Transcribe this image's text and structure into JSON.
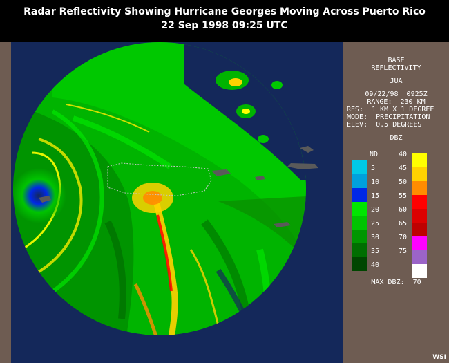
{
  "header": {
    "title": "Radar Reflectivity Showing Hurricane Georges Moving Across Puerto Rico",
    "subtitle": "22 Sep 1998 09:25 UTC"
  },
  "panel": {
    "product": "BASE",
    "product2": "REFLECTIVITY",
    "station": "JUA",
    "datetime": "09/22/98  0925Z",
    "range": "RANGE:  230 KM",
    "res": "RES:  1 KM X 1 DEGREE",
    "mode": "MODE:  PRECIPITATION",
    "elev": "ELEV:  0.5 DEGREES",
    "units": "DBZ",
    "max_dbz": "MAX DBZ:  70"
  },
  "legend": {
    "left": [
      {
        "label": "ND",
        "color": ""
      },
      {
        "label": "5",
        "color": "#00c8e6"
      },
      {
        "label": "10",
        "color": "#00a0dc"
      },
      {
        "label": "15",
        "color": "#0028e6"
      },
      {
        "label": "20",
        "color": "#00e600"
      },
      {
        "label": "25",
        "color": "#00c400"
      },
      {
        "label": "30",
        "color": "#009600"
      },
      {
        "label": "35",
        "color": "#006e00"
      },
      {
        "label": "40",
        "color": "#004600"
      }
    ],
    "right": [
      {
        "label": "40",
        "color": "#ffff00"
      },
      {
        "label": "45",
        "color": "#ffd200"
      },
      {
        "label": "50",
        "color": "#ff8c00"
      },
      {
        "label": "55",
        "color": "#ff0000"
      },
      {
        "label": "60",
        "color": "#dc0000"
      },
      {
        "label": "65",
        "color": "#be0000"
      },
      {
        "label": "70",
        "color": "#ff00ff"
      },
      {
        "label": "75",
        "color": "#9b64c8"
      },
      {
        "label": "",
        "color": "#ffffff"
      }
    ]
  },
  "logo": "WSI",
  "colors": {
    "background": "#6e5c52",
    "ocean": "#14285a",
    "header": "#000000"
  }
}
